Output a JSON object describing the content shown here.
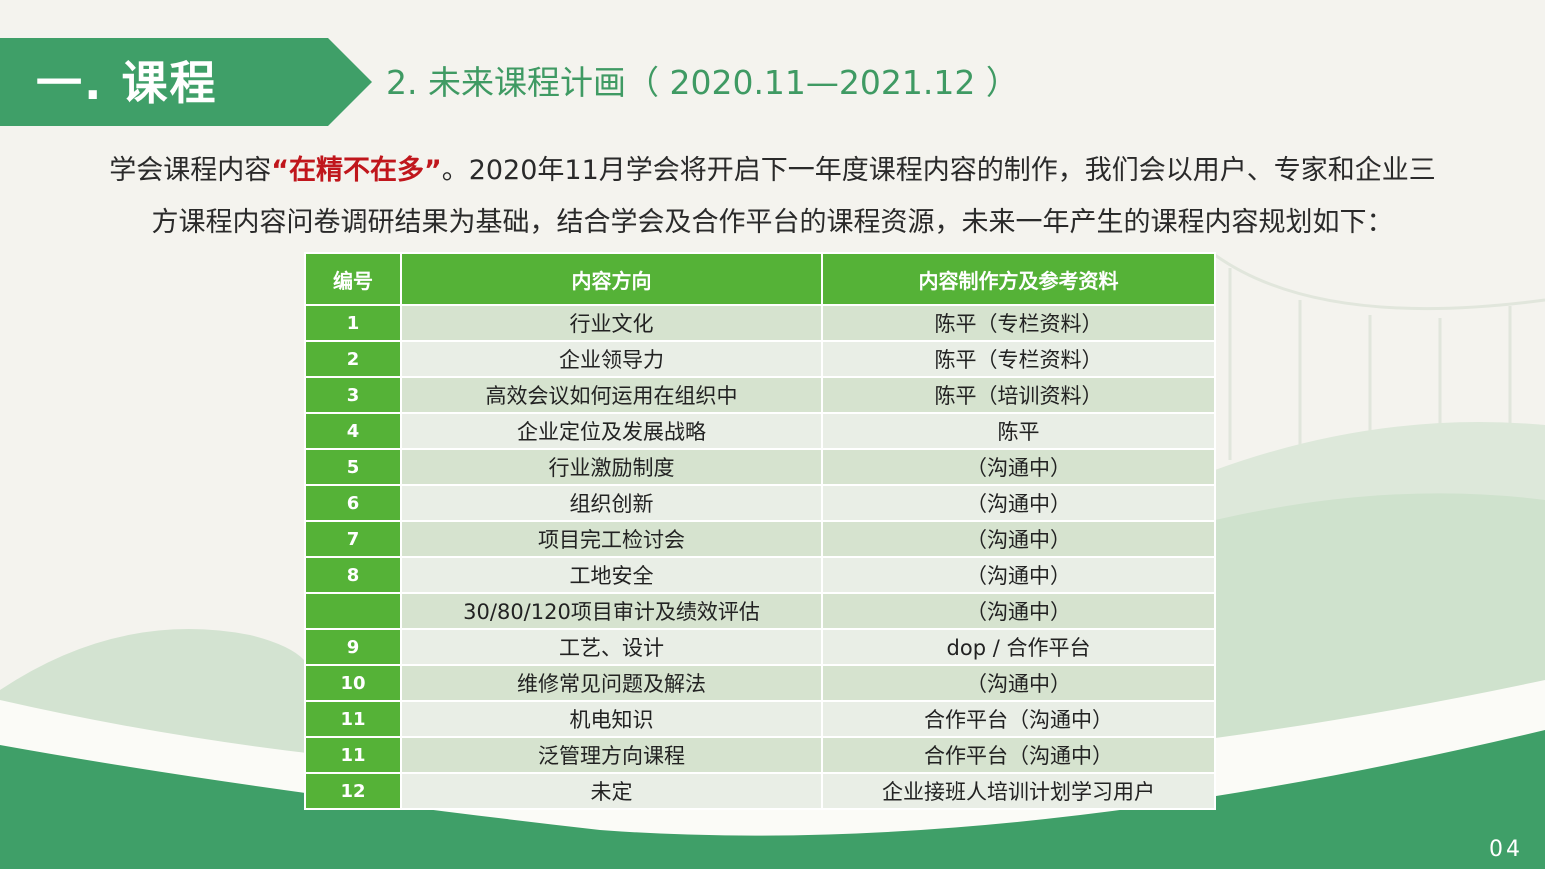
{
  "header": {
    "section_title": "一. 课程",
    "subtitle": "2. 未来课程计画（ 2020.11—2021.12 ）"
  },
  "intro": {
    "line1_prefix": "学会课程内容",
    "line1_highlight": "“在精不在多”",
    "line1_suffix": "。2020年11月学会将开启下一年度课程内容的制作，我们会以用户、专家和企业三",
    "line2": "方课程内容问卷调研结果为基础，结合学会及合作平台的课程资源，未来一年产生的课程内容规划如下："
  },
  "table": {
    "headers": [
      "编号",
      "内容方向",
      "内容制作方及参考资料"
    ],
    "rows": [
      {
        "no": "1",
        "topic": "行业文化",
        "source": "陈平（专栏资料）"
      },
      {
        "no": "2",
        "topic": "企业领导力",
        "source": "陈平（专栏资料）"
      },
      {
        "no": "3",
        "topic": "高效会议如何运用在组织中",
        "source": "陈平（培训资料）"
      },
      {
        "no": "4",
        "topic": "企业定位及发展战略",
        "source": "陈平"
      },
      {
        "no": "5",
        "topic": "行业激励制度",
        "source": "（沟通中）"
      },
      {
        "no": "6",
        "topic": "组织创新",
        "source": "（沟通中）"
      },
      {
        "no": "7",
        "topic": "项目完工检讨会",
        "source": "（沟通中）"
      },
      {
        "no": "8",
        "topic": "工地安全",
        "source": "（沟通中）"
      },
      {
        "no": "",
        "topic": "30/80/120项目审计及绩效评估",
        "source": "（沟通中）"
      },
      {
        "no": "9",
        "topic": "工艺、设计",
        "source": "dop / 合作平台"
      },
      {
        "no": "10",
        "topic": "维修常见问题及解法",
        "source": "（沟通中）"
      },
      {
        "no": "11",
        "topic": "机电知识",
        "source": "合作平台（沟通中）"
      },
      {
        "no": "11",
        "topic": "泛管理方向课程",
        "source": "合作平台（沟通中）"
      },
      {
        "no": "12",
        "topic": "未定",
        "source": "企业接班人培训计划学习用户"
      }
    ]
  },
  "footer": {
    "page_number": "04"
  },
  "colors": {
    "banner": "#3f9f68",
    "subtitle": "#3f9a63",
    "table_header": "#55b237",
    "row_odd": "#d6e3cf",
    "row_even": "#e9eee6",
    "highlight": "#c0161c"
  }
}
